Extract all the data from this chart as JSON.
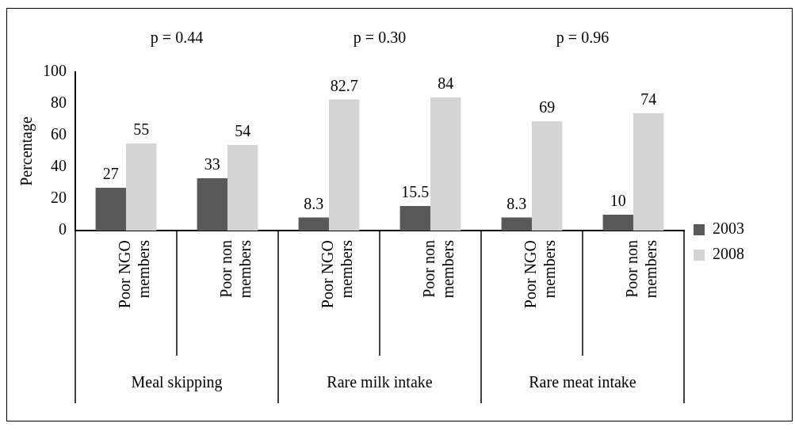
{
  "chart_data": {
    "type": "bar",
    "ylabel": "Percentage",
    "categories": [
      "Poor NGO members",
      "Poor non members",
      "Poor NGO members",
      "Poor non members",
      "Poor NGO members",
      "Poor non members"
    ],
    "series": [
      {
        "name": "2003",
        "color": "#595959",
        "values": [
          27,
          33,
          8.3,
          15.5,
          8.3,
          10
        ]
      },
      {
        "name": "2008",
        "color": "#d4d4d4",
        "values": [
          55,
          54,
          82.7,
          84,
          69,
          74
        ]
      }
    ],
    "ylim": [
      0,
      100
    ],
    "yticks": [
      0,
      20,
      40,
      60,
      80,
      100
    ],
    "grid": false,
    "legend": "right",
    "data_labels": true,
    "annotations": [
      "p = 0.44",
      "p = 0.30",
      "p = 0.96",
      "Meal skipping",
      "Rare milk intake",
      "Rare meat intake"
    ]
  }
}
